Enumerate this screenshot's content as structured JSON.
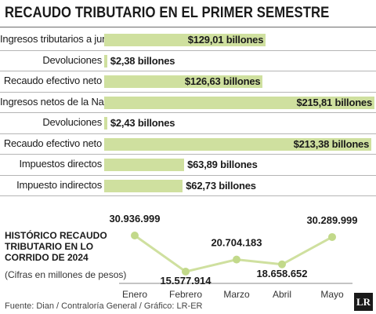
{
  "title": "RECAUDO TRIBUTARIO EN EL PRIMER SEMESTRE",
  "footer": "Fuente: Dian / Contraloría General / Gráfico: LR-ER",
  "logo_text": "LR",
  "colors": {
    "bar": "#cfe09f",
    "line": "#cfe09f",
    "marker": "#c2d98a",
    "text": "#1a1a1a"
  },
  "bar_rows": [
    {
      "label": "Ingresos tributarios a junio",
      "value": 129.01,
      "value_label": "$129,01 billones"
    },
    {
      "label": "Devoluciones",
      "value": 2.38,
      "value_label": "$2,38 billones"
    },
    {
      "label": "Recaudo efectivo neto",
      "value": 126.63,
      "value_label": "$126,63 billones"
    },
    {
      "label": "Ingresos netos de la Nación",
      "value": 215.81,
      "value_label": "$215,81 billones"
    },
    {
      "label": "Devoluciones",
      "value": 2.43,
      "value_label": "$2,43 billones"
    },
    {
      "label": "Recaudo efectivo neto",
      "value": 213.38,
      "value_label": "$213,38 billones"
    },
    {
      "label": "Impuestos directos",
      "value": 63.89,
      "value_label": "$63,89 billones"
    },
    {
      "label": "Impuesto indirectos",
      "value": 62.73,
      "value_label": "$62,73 billones"
    }
  ],
  "line_chart": {
    "title_lines": [
      "HISTÓRICO RECAUDO",
      "TRIBUTARIO EN LO",
      "CORRIDO DE 2024"
    ],
    "subtitle": "(Cifras en millones de pesos)"
  },
  "chart_data": [
    {
      "type": "bar",
      "orientation": "horizontal",
      "title": "RECAUDO TRIBUTARIO EN EL PRIMER SEMESTRE",
      "categories": [
        "Ingresos tributarios a junio",
        "Devoluciones",
        "Recaudo efectivo neto",
        "Ingresos netos de la Nación",
        "Devoluciones",
        "Recaudo efectivo neto",
        "Impuestos directos",
        "Impuesto indirectos"
      ],
      "values": [
        129.01,
        2.38,
        126.63,
        215.81,
        2.43,
        213.38,
        63.89,
        62.73
      ],
      "data_labels": [
        "$129,01 billones",
        "$2,38 billones",
        "$126,63 billones",
        "$215,81 billones",
        "$2,43 billones",
        "$213,38 billones",
        "$63,89 billones",
        "$62,73 billones"
      ],
      "xlim": [
        0,
        215.81
      ],
      "grid": false
    },
    {
      "type": "line",
      "title": "HISTÓRICO RECAUDO TRIBUTARIO EN LO CORRIDO DE 2024",
      "subtitle": "(Cifras en millones de pesos)",
      "categories": [
        "Enero",
        "Febrero",
        "Marzo",
        "Abril",
        "Mayo"
      ],
      "values": [
        30936999,
        15577914,
        20704183,
        18658652,
        30289999
      ],
      "data_labels": [
        "30.936.999",
        "15.577.914",
        "20.704.183",
        "18.658.652",
        "30.289.999"
      ],
      "ylim": [
        15577914,
        30936999
      ],
      "grid": false
    }
  ]
}
